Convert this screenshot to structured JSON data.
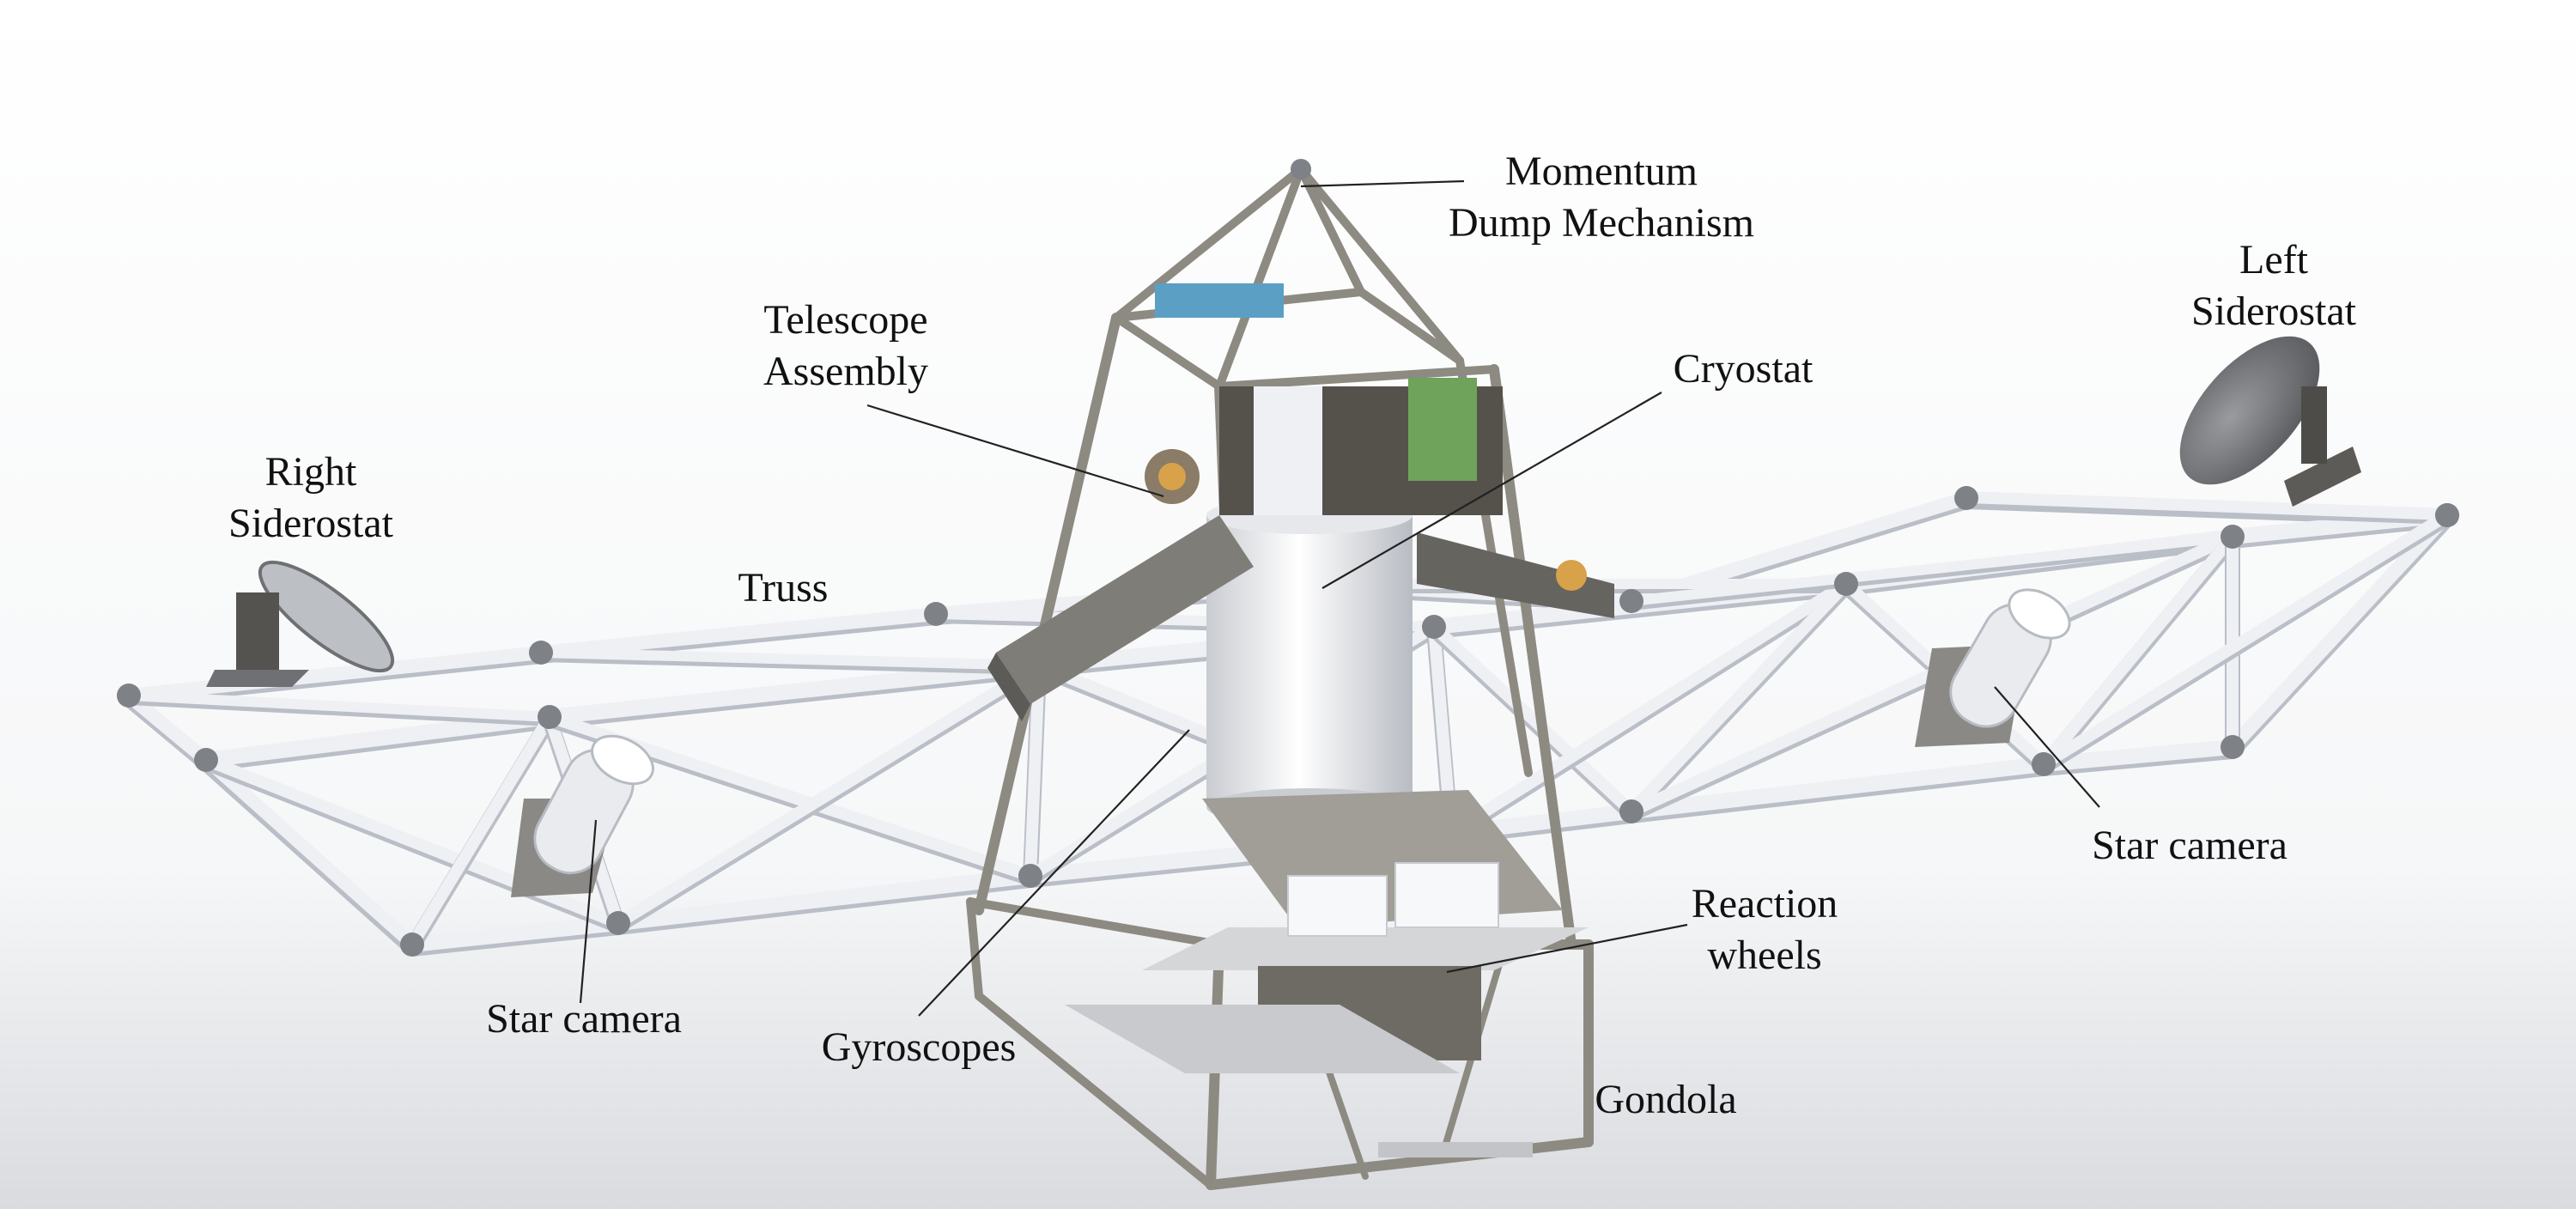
{
  "labels": {
    "momentum_dump": [
      "Momentum",
      "Dump Mechanism"
    ],
    "left_siderostat": [
      "Left",
      "Siderostat"
    ],
    "telescope_assembly": [
      "Telescope",
      "Assembly"
    ],
    "cryostat": "Cryostat",
    "right_siderostat": [
      "Right",
      "Siderostat"
    ],
    "truss": "Truss",
    "star_camera_right": "Star camera",
    "star_camera_left": "Star camera",
    "reaction_wheels": [
      "Reaction",
      "wheels"
    ],
    "gyroscopes": "Gyroscopes",
    "gondola": "Gondola"
  },
  "colors": {
    "background_top": "#ffffff",
    "background_bottom": "#d9dbdf",
    "truss_tube": "#eef0f4",
    "truss_shadow": "#b9bec7",
    "node": "#7e8186",
    "frame": "#8d8a82",
    "mirror": "#6f7073",
    "instrument_blue": "#5b9fc4",
    "instrument_green": "#6fa35b",
    "instrument_dark": "#55524c",
    "label_text": "#111111",
    "leader_line": "#222222"
  }
}
